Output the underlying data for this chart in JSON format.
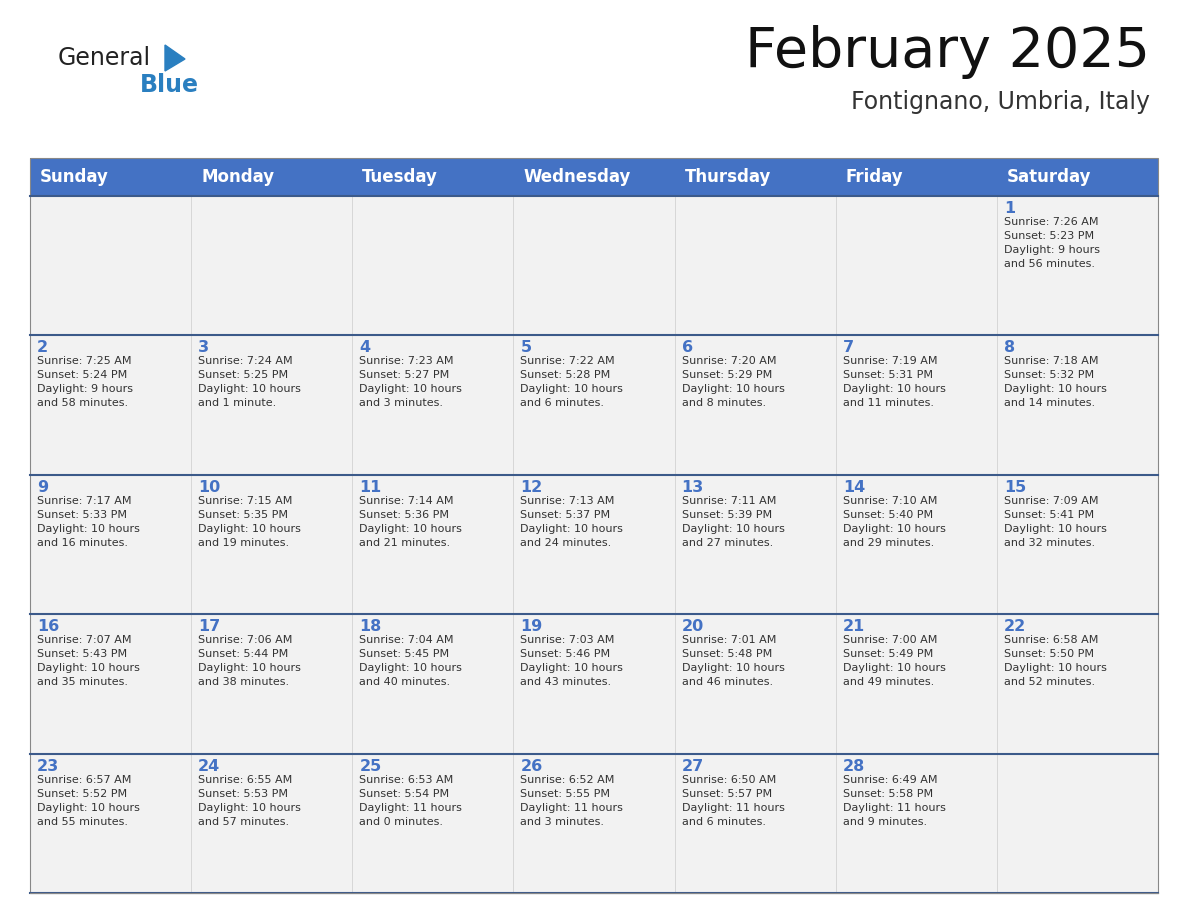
{
  "title": "February 2025",
  "subtitle": "Fontignano, Umbria, Italy",
  "header_bg": "#4472C4",
  "header_text_color": "#FFFFFF",
  "cell_bg": "#F2F2F2",
  "day_number_color": "#4472C4",
  "cell_text_color": "#333333",
  "row_divider_color": "#3C5A8A",
  "outer_border_color": "#888888",
  "days_of_week": [
    "Sunday",
    "Monday",
    "Tuesday",
    "Wednesday",
    "Thursday",
    "Friday",
    "Saturday"
  ],
  "weeks": [
    [
      {
        "day": null,
        "info": null
      },
      {
        "day": null,
        "info": null
      },
      {
        "day": null,
        "info": null
      },
      {
        "day": null,
        "info": null
      },
      {
        "day": null,
        "info": null
      },
      {
        "day": null,
        "info": null
      },
      {
        "day": 1,
        "info": "Sunrise: 7:26 AM\nSunset: 5:23 PM\nDaylight: 9 hours\nand 56 minutes."
      }
    ],
    [
      {
        "day": 2,
        "info": "Sunrise: 7:25 AM\nSunset: 5:24 PM\nDaylight: 9 hours\nand 58 minutes."
      },
      {
        "day": 3,
        "info": "Sunrise: 7:24 AM\nSunset: 5:25 PM\nDaylight: 10 hours\nand 1 minute."
      },
      {
        "day": 4,
        "info": "Sunrise: 7:23 AM\nSunset: 5:27 PM\nDaylight: 10 hours\nand 3 minutes."
      },
      {
        "day": 5,
        "info": "Sunrise: 7:22 AM\nSunset: 5:28 PM\nDaylight: 10 hours\nand 6 minutes."
      },
      {
        "day": 6,
        "info": "Sunrise: 7:20 AM\nSunset: 5:29 PM\nDaylight: 10 hours\nand 8 minutes."
      },
      {
        "day": 7,
        "info": "Sunrise: 7:19 AM\nSunset: 5:31 PM\nDaylight: 10 hours\nand 11 minutes."
      },
      {
        "day": 8,
        "info": "Sunrise: 7:18 AM\nSunset: 5:32 PM\nDaylight: 10 hours\nand 14 minutes."
      }
    ],
    [
      {
        "day": 9,
        "info": "Sunrise: 7:17 AM\nSunset: 5:33 PM\nDaylight: 10 hours\nand 16 minutes."
      },
      {
        "day": 10,
        "info": "Sunrise: 7:15 AM\nSunset: 5:35 PM\nDaylight: 10 hours\nand 19 minutes."
      },
      {
        "day": 11,
        "info": "Sunrise: 7:14 AM\nSunset: 5:36 PM\nDaylight: 10 hours\nand 21 minutes."
      },
      {
        "day": 12,
        "info": "Sunrise: 7:13 AM\nSunset: 5:37 PM\nDaylight: 10 hours\nand 24 minutes."
      },
      {
        "day": 13,
        "info": "Sunrise: 7:11 AM\nSunset: 5:39 PM\nDaylight: 10 hours\nand 27 minutes."
      },
      {
        "day": 14,
        "info": "Sunrise: 7:10 AM\nSunset: 5:40 PM\nDaylight: 10 hours\nand 29 minutes."
      },
      {
        "day": 15,
        "info": "Sunrise: 7:09 AM\nSunset: 5:41 PM\nDaylight: 10 hours\nand 32 minutes."
      }
    ],
    [
      {
        "day": 16,
        "info": "Sunrise: 7:07 AM\nSunset: 5:43 PM\nDaylight: 10 hours\nand 35 minutes."
      },
      {
        "day": 17,
        "info": "Sunrise: 7:06 AM\nSunset: 5:44 PM\nDaylight: 10 hours\nand 38 minutes."
      },
      {
        "day": 18,
        "info": "Sunrise: 7:04 AM\nSunset: 5:45 PM\nDaylight: 10 hours\nand 40 minutes."
      },
      {
        "day": 19,
        "info": "Sunrise: 7:03 AM\nSunset: 5:46 PM\nDaylight: 10 hours\nand 43 minutes."
      },
      {
        "day": 20,
        "info": "Sunrise: 7:01 AM\nSunset: 5:48 PM\nDaylight: 10 hours\nand 46 minutes."
      },
      {
        "day": 21,
        "info": "Sunrise: 7:00 AM\nSunset: 5:49 PM\nDaylight: 10 hours\nand 49 minutes."
      },
      {
        "day": 22,
        "info": "Sunrise: 6:58 AM\nSunset: 5:50 PM\nDaylight: 10 hours\nand 52 minutes."
      }
    ],
    [
      {
        "day": 23,
        "info": "Sunrise: 6:57 AM\nSunset: 5:52 PM\nDaylight: 10 hours\nand 55 minutes."
      },
      {
        "day": 24,
        "info": "Sunrise: 6:55 AM\nSunset: 5:53 PM\nDaylight: 10 hours\nand 57 minutes."
      },
      {
        "day": 25,
        "info": "Sunrise: 6:53 AM\nSunset: 5:54 PM\nDaylight: 11 hours\nand 0 minutes."
      },
      {
        "day": 26,
        "info": "Sunrise: 6:52 AM\nSunset: 5:55 PM\nDaylight: 11 hours\nand 3 minutes."
      },
      {
        "day": 27,
        "info": "Sunrise: 6:50 AM\nSunset: 5:57 PM\nDaylight: 11 hours\nand 6 minutes."
      },
      {
        "day": 28,
        "info": "Sunrise: 6:49 AM\nSunset: 5:58 PM\nDaylight: 11 hours\nand 9 minutes."
      },
      {
        "day": null,
        "info": null
      }
    ]
  ],
  "logo_general_color": "#222222",
  "logo_blue_color": "#2A7FC0",
  "logo_triangle_color": "#2A7FC0",
  "title_color": "#111111",
  "subtitle_color": "#333333",
  "fig_width": 11.88,
  "fig_height": 9.18,
  "dpi": 100
}
